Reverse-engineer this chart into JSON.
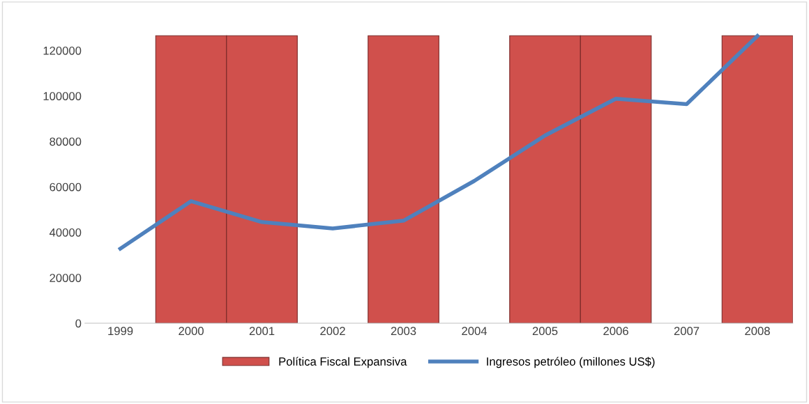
{
  "chart_data": {
    "type": "bar",
    "categories": [
      "1999",
      "2000",
      "2001",
      "2002",
      "2003",
      "2004",
      "2005",
      "2006",
      "2007",
      "2008"
    ],
    "series": [
      {
        "name": "Política Fiscal Expansiva",
        "color": "#d0504c",
        "values": [
          null,
          126500,
          126500,
          null,
          126500,
          null,
          126500,
          126500,
          null,
          126500
        ]
      },
      {
        "name": "Ingresos petróleo (millones US$)",
        "type": "line",
        "color": "#4f81bd",
        "values": [
          32800,
          53700,
          44500,
          41700,
          45100,
          62600,
          82600,
          98800,
          96400,
          126400
        ]
      }
    ],
    "ylim": [
      0,
      128000
    ],
    "yticks": [
      0,
      20000,
      40000,
      60000,
      80000,
      100000,
      120000
    ],
    "grid": false,
    "legend": "bottom",
    "marker": "none",
    "line_style": "solid"
  }
}
